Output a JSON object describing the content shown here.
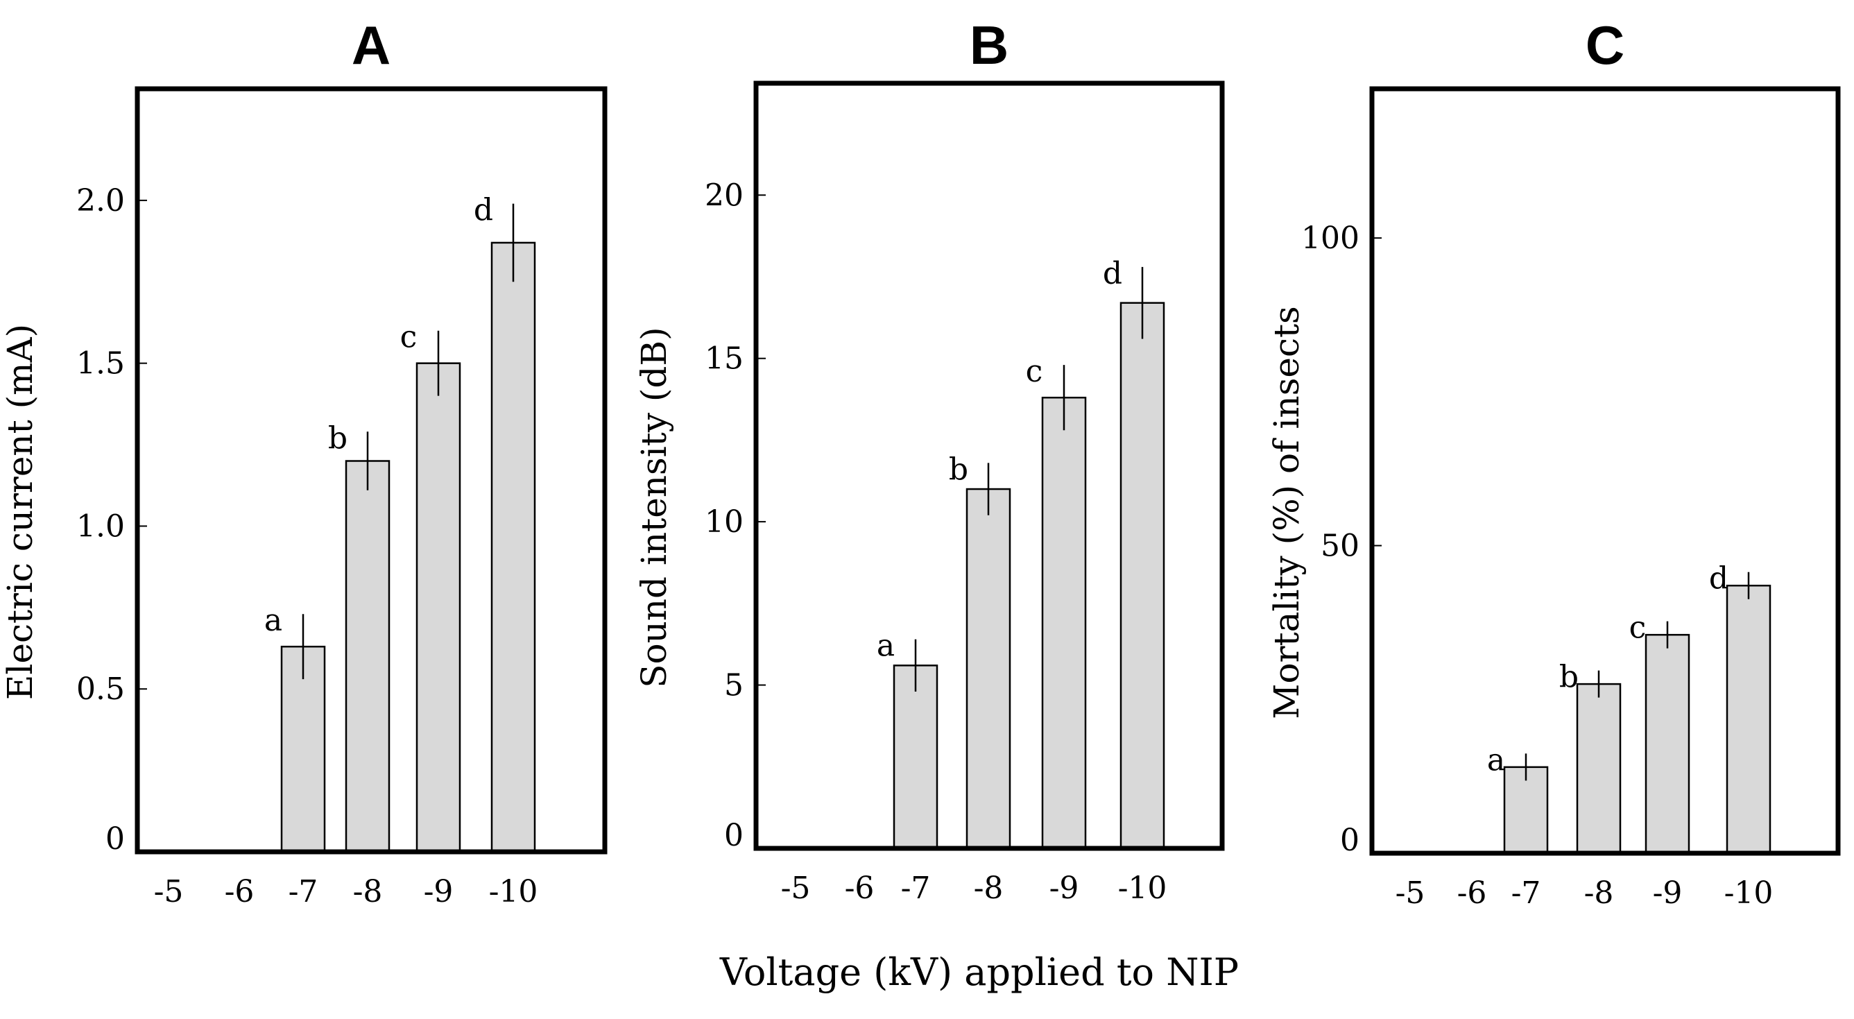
{
  "figure": {
    "shared_xlabel": "Voltage (kV) applied to NIP"
  },
  "chart_data": [
    {
      "type": "bar",
      "panel": "A",
      "title": "A",
      "xlabel": "",
      "ylabel": "Electric current (mA)",
      "categories": [
        "-5",
        "-6",
        "-7",
        "-8",
        "-9",
        "-10"
      ],
      "values": [
        0,
        0,
        0.63,
        1.2,
        1.5,
        1.87
      ],
      "errors": [
        0,
        0,
        0.1,
        0.09,
        0.1,
        0.12
      ],
      "significance": [
        "",
        "",
        "a",
        "b",
        "c",
        "d"
      ],
      "ylim": [
        0,
        2.3
      ],
      "yticks": [
        0,
        0.5,
        1.0,
        1.5,
        2.0
      ],
      "ytick_labels": [
        "0",
        "0.5",
        "1.0",
        "1.5",
        "2.0"
      ],
      "grid": false
    },
    {
      "type": "bar",
      "panel": "B",
      "title": "B",
      "xlabel": "",
      "ylabel": "Sound intensity (dB)",
      "categories": [
        "-5",
        "-6",
        "-7",
        "-8",
        "-9",
        "-10"
      ],
      "values": [
        0,
        0,
        5.6,
        11,
        13.8,
        16.7
      ],
      "errors": [
        0,
        0,
        0.8,
        0.8,
        1.0,
        1.1
      ],
      "significance": [
        "",
        "",
        "a",
        "b",
        "c",
        "d"
      ],
      "ylim": [
        0,
        23
      ],
      "yticks": [
        0,
        5,
        10,
        15,
        20
      ],
      "ytick_labels": [
        "0",
        "5",
        "10",
        "15",
        "20"
      ],
      "grid": false
    },
    {
      "type": "bar",
      "panel": "C",
      "title": "C",
      "xlabel": "",
      "ylabel": "Mortality (%) of insects",
      "categories": [
        "-5",
        "-6",
        "-7",
        "-8",
        "-9",
        "-10"
      ],
      "values": [
        0,
        0,
        14,
        27.5,
        35.5,
        43.5
      ],
      "errors": [
        0,
        0,
        2.2,
        2.2,
        2.2,
        2.2
      ],
      "significance": [
        "",
        "",
        "a",
        "b",
        "c",
        "d"
      ],
      "ylim": [
        0,
        122
      ],
      "yticks": [
        0,
        50,
        100
      ],
      "ytick_labels": [
        "0",
        "50",
        "100"
      ],
      "grid": false
    }
  ]
}
